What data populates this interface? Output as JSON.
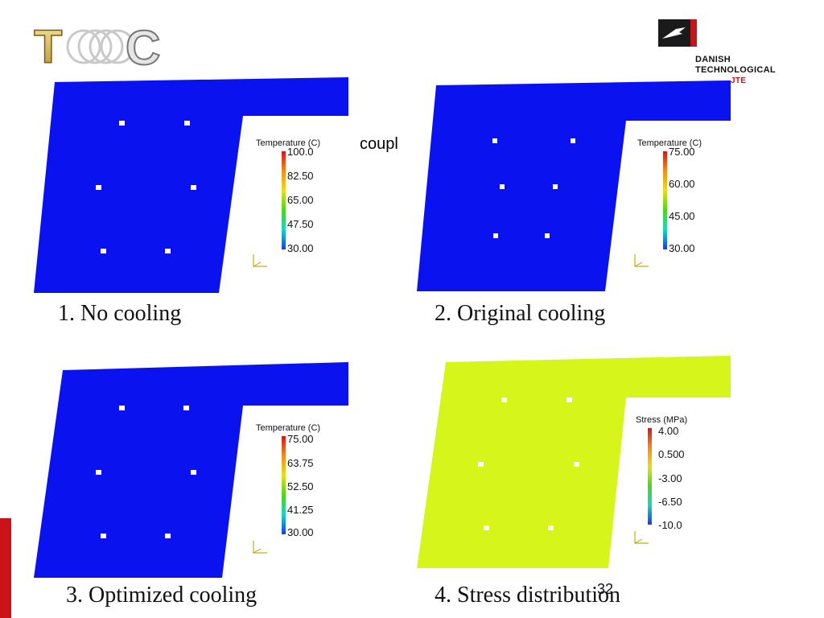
{
  "logo": {
    "left_letter": "T",
    "right_letter": "C"
  },
  "institute": {
    "line1": "DANISH",
    "line2": "TECHNOLOGICAL",
    "line3": "JTE"
  },
  "overlay_text": "coupl",
  "page_number": "32",
  "colors": {
    "cold_blue": "#0a12f0",
    "stress_yellow": "#d6f51a",
    "brand_red": "#cc1219"
  },
  "panels": [
    {
      "caption": "1. No cooling",
      "legend_title": "Temperature (C)",
      "ticks": [
        "100.0",
        "82.50",
        "65.00",
        "47.50",
        "30.00"
      ]
    },
    {
      "caption": "2. Original cooling",
      "legend_title": "Temperature (C)",
      "ticks": [
        "75.00",
        "60.00",
        "45.00",
        "30.00"
      ]
    },
    {
      "caption": "3. Optimized cooling",
      "legend_title": "Temperature (C)",
      "ticks": [
        "75.00",
        "63.75",
        "52.50",
        "41.25",
        "30.00"
      ]
    },
    {
      "caption": "4. Stress distribution",
      "legend_title": "Stress (MPa)",
      "ticks": [
        "4.00",
        "0.500",
        "-3.00",
        "-6.50",
        "-10.0"
      ]
    }
  ]
}
